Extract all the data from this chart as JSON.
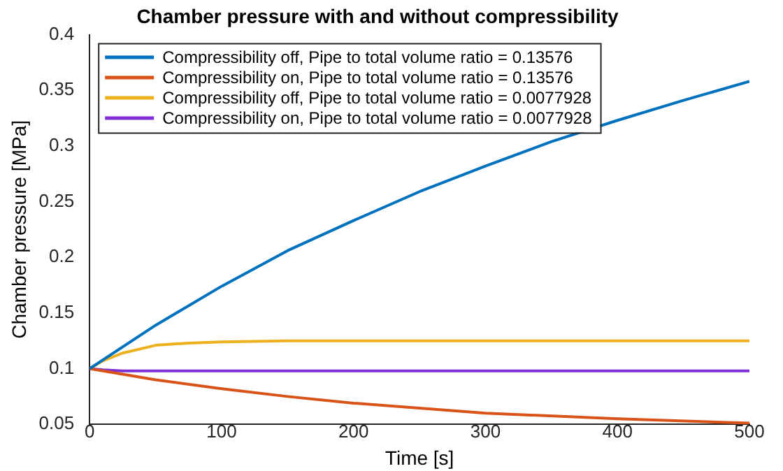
{
  "chart_data": {
    "type": "line",
    "title": "Chamber pressure with and without compressibility",
    "xlabel": "Time [s]",
    "ylabel": "Chamber pressure [MPa]",
    "xlim": [
      0,
      500
    ],
    "xticks": [
      0,
      100,
      200,
      300,
      400,
      500
    ],
    "ylim": [
      0.05,
      0.4
    ],
    "yticks": [
      0.05,
      0.1,
      0.15,
      0.2,
      0.25,
      0.3,
      0.35,
      0.4
    ],
    "grid": false,
    "legend": "top left",
    "marker": "none",
    "line_style": "solid",
    "series": [
      {
        "name": "Compressibility off, Pipe to total volume ratio = 0.13576",
        "color": "#0072bd",
        "x": [
          0,
          50,
          100,
          150,
          200,
          250,
          300,
          350,
          400,
          450,
          500
        ],
        "values": [
          0.1,
          0.139,
          0.174,
          0.206,
          0.233,
          0.259,
          0.282,
          0.304,
          0.323,
          0.341,
          0.358
        ]
      },
      {
        "name": "Compressibility on, Pipe to total volume ratio = 0.13576",
        "color": "#d95319",
        "x": [
          0,
          50,
          100,
          150,
          200,
          300,
          400,
          500
        ],
        "values": [
          0.1,
          0.09,
          0.082,
          0.075,
          0.069,
          0.06,
          0.055,
          0.051
        ]
      },
      {
        "name": "Compressibility off, Pipe to total volume ratio = 0.0077928",
        "color": "#edb120",
        "x": [
          0,
          10,
          25,
          50,
          75,
          100,
          150,
          500
        ],
        "values": [
          0.1,
          0.107,
          0.114,
          0.121,
          0.123,
          0.124,
          0.125,
          0.125
        ]
      },
      {
        "name": "Compressibility on, Pipe to total volume ratio = 0.0077928",
        "color": "#7e2fd8",
        "x": [
          0,
          10,
          25,
          50,
          500
        ],
        "values": [
          0.1,
          0.099,
          0.098,
          0.098,
          0.098
        ]
      }
    ]
  }
}
